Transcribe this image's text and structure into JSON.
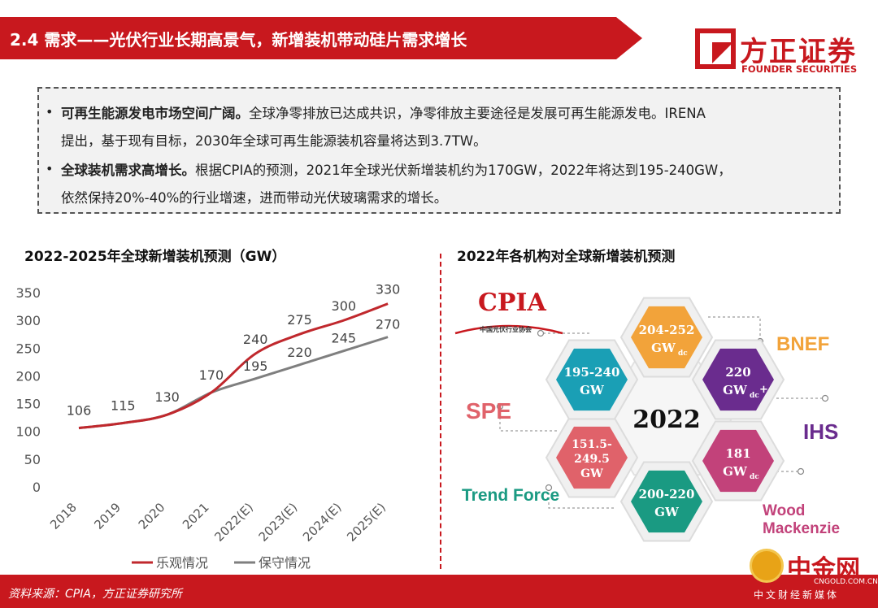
{
  "header": {
    "title": "2.4 需求——光伏行业长期高景气，新增装机带动硅片需求增长",
    "logo_cn": "方正证券",
    "logo_en": "FOUNDER SECURITIES"
  },
  "summary": {
    "bullet_char": "•",
    "items": [
      {
        "lead": "可再生能源发电市场空间广阔。",
        "line1": "全球净零排放已达成共识，净零徘放主要途径是发展可再生能源发电。IRENA",
        "line2": "提出，基于现有目标，2030年全球可再生能源装机容量将达到3.7TW。"
      },
      {
        "lead": "全球装机需求高增长。",
        "line1": "根据CPIA的预测，2021年全球光伏新增装机约为170GW，2022年将达到195-240GW，",
        "line2": "依然保持20%-40%的行业增速，进而带动光伏玻璃需求的增长。"
      }
    ]
  },
  "left_title": "2022-2025年全球新增装机预测（GW）",
  "right_title": "2022年各机构对全球新增装机预测",
  "chart_data": {
    "type": "line",
    "title": "2022-2025年全球新增装机预测（GW）",
    "xlabel": "",
    "ylabel": "",
    "categories": [
      "2018",
      "2019",
      "2020",
      "2021",
      "2022(E)",
      "2023(E)",
      "2024(E)",
      "2025(E)"
    ],
    "ylim": [
      0,
      350
    ],
    "yticks": [
      0,
      50,
      100,
      150,
      200,
      250,
      300,
      350
    ],
    "grid": false,
    "legend": "bottom",
    "series": [
      {
        "name": "乐观情况",
        "color": "#c0282d",
        "values": [
          106,
          115,
          130,
          170,
          240,
          275,
          300,
          330
        ]
      },
      {
        "name": "保守情况",
        "color": "#7f7f7f",
        "values": [
          106,
          115,
          130,
          170,
          195,
          220,
          245,
          270
        ]
      }
    ]
  },
  "hex_graphic": {
    "center_label": "2022",
    "cells": [
      {
        "lines": [
          "204-252",
          "GW",
          "dc",
          ""
        ],
        "color": "#f2a33a"
      },
      {
        "lines": [
          "220",
          "GW",
          "dc",
          "+"
        ],
        "color": "#6a2c8e"
      },
      {
        "lines": [
          "181",
          "GW",
          "dc",
          ""
        ],
        "color": "#c2427a"
      },
      {
        "lines": [
          "200-220",
          "GW",
          "",
          ""
        ],
        "color": "#1a9a82"
      },
      {
        "lines": [
          "151.5-",
          "249.5",
          "GW",
          ""
        ],
        "color": "#e0626a"
      },
      {
        "lines": [
          "195-240",
          "GW",
          "",
          ""
        ],
        "color": "#1a9fb5"
      }
    ],
    "orgs": [
      {
        "name": "CPIA",
        "sub": "中国光伏行业协会",
        "color": "#c8181e"
      },
      {
        "name": "BNEF",
        "color": "#f2a33a"
      },
      {
        "name": "IHS",
        "color": "#6a2c8e"
      },
      {
        "name": "Wood",
        "name2": "Mackenzie",
        "color": "#c2427a"
      },
      {
        "name": "Trend Force",
        "color": "#1a9a82"
      },
      {
        "name": "SPE",
        "color": "#e0626a"
      }
    ]
  },
  "footer": {
    "source": "资料来源：CPIA，方正证券研究所",
    "watermark_main": "中金网",
    "watermark_url": "CNGOLD.COM.CN",
    "watermark_sub": "中文财经新媒体"
  }
}
